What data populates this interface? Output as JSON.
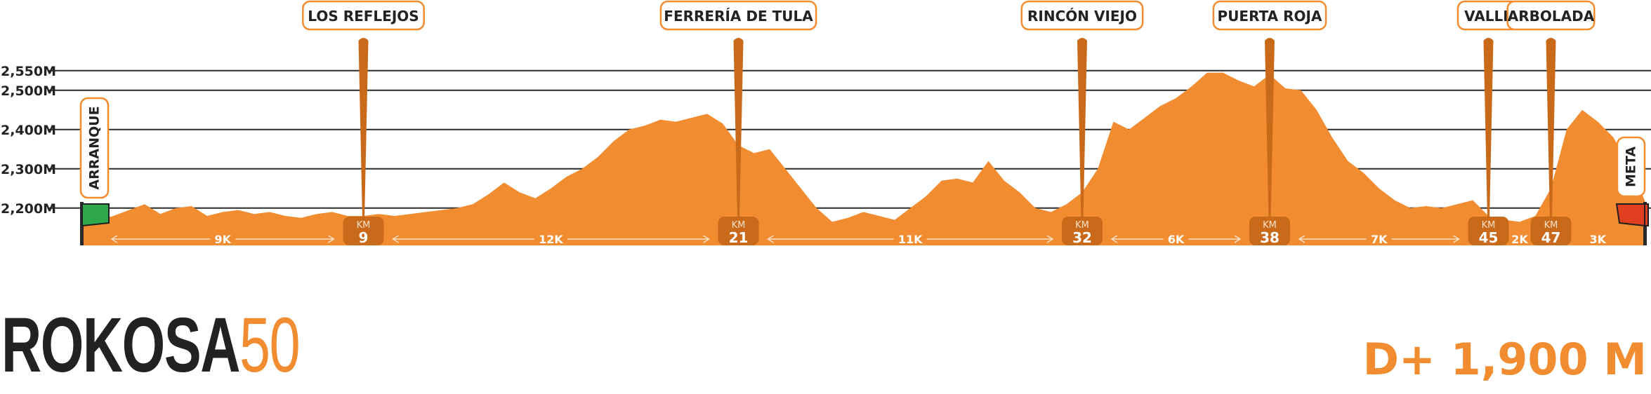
{
  "colors": {
    "accent": "#f28c30",
    "accent_dark": "#c9691a",
    "text_dark": "#222222",
    "start_flag": "#2ea84a",
    "finish_flag": "#e0401f"
  },
  "chart_data": {
    "type": "area",
    "title": "",
    "xlabel": "",
    "ylabel": "",
    "xlim": [
      0,
      50
    ],
    "ylim": [
      2105,
      2560
    ],
    "y_ticks": [
      {
        "value": 2200,
        "label": "2,200M"
      },
      {
        "value": 2300,
        "label": "2,300M"
      },
      {
        "value": 2400,
        "label": "2,400M"
      },
      {
        "value": 2500,
        "label": "2,500M"
      },
      {
        "value": 2550,
        "label": "2,550M"
      }
    ],
    "grid": true,
    "series": [
      {
        "x": [
          0,
          0.5,
          1,
          1.5,
          2,
          2.5,
          3,
          3.5,
          4,
          4.5,
          5,
          5.5,
          6,
          6.5,
          7,
          7.5,
          8,
          8.5,
          9,
          9.5,
          10,
          10.5,
          11,
          11.5,
          12,
          12.5,
          13,
          13.5,
          14,
          14.5,
          15,
          15.5,
          16,
          16.5,
          17,
          17.5,
          18,
          18.5,
          19,
          19.5,
          20,
          20.5,
          21,
          21.5,
          22,
          22.5,
          23,
          23.5,
          24,
          24.5,
          25,
          25.5,
          26,
          26.5,
          27,
          27.5,
          28,
          28.5,
          29,
          29.5,
          30,
          30.5,
          31,
          31.5,
          32,
          32.5,
          33,
          33.5,
          34,
          34.5,
          35,
          35.5,
          36,
          36.5,
          37,
          37.5,
          38,
          38.5,
          39,
          39.5,
          40,
          40.5,
          41,
          41.5,
          42,
          42.5,
          43,
          43.5,
          44,
          44.5,
          45,
          45.5,
          46,
          46.5,
          47,
          47.5,
          48,
          48.5,
          49,
          49.5,
          50
        ],
        "values": [
          2165,
          2170,
          2180,
          2195,
          2210,
          2185,
          2200,
          2205,
          2180,
          2190,
          2195,
          2185,
          2190,
          2180,
          2175,
          2185,
          2190,
          2180,
          2180,
          2185,
          2180,
          2185,
          2190,
          2195,
          2200,
          2210,
          2235,
          2265,
          2240,
          2225,
          2250,
          2280,
          2300,
          2330,
          2370,
          2400,
          2410,
          2425,
          2420,
          2430,
          2440,
          2415,
          2360,
          2340,
          2350,
          2300,
          2250,
          2200,
          2165,
          2175,
          2190,
          2180,
          2170,
          2200,
          2230,
          2270,
          2275,
          2265,
          2320,
          2270,
          2240,
          2200,
          2190,
          2210,
          2240,
          2300,
          2420,
          2400,
          2430,
          2460,
          2480,
          2510,
          2545,
          2545,
          2525,
          2510,
          2540,
          2505,
          2500,
          2450,
          2380,
          2320,
          2290,
          2250,
          2220,
          2200,
          2205,
          2200,
          2210,
          2220,
          2180,
          2170,
          2165,
          2180,
          2250,
          2400,
          2450,
          2420,
          2380,
          2310,
          2220
        ]
      }
    ],
    "checkpoints": [
      {
        "name": "LOS REFLEJOS",
        "km": 9,
        "label": "9"
      },
      {
        "name": "FERRERÍA DE TULA",
        "km": 21,
        "label": "21"
      },
      {
        "name": "RINCÓN VIEJO",
        "km": 32,
        "label": "32"
      },
      {
        "name": "PUERTA ROJA",
        "km": 38,
        "label": "38"
      },
      {
        "name": "VALLE",
        "km": 45,
        "label": "45"
      },
      {
        "name": "ARBOLADA",
        "km": 47,
        "label": "47"
      }
    ],
    "km_badge_prefix": "KM",
    "segments": [
      {
        "from_km": 0,
        "to_km": 9,
        "label": "9K"
      },
      {
        "from_km": 9,
        "to_km": 21,
        "label": "12K"
      },
      {
        "from_km": 21,
        "to_km": 32,
        "label": "11K"
      },
      {
        "from_km": 32,
        "to_km": 38,
        "label": "6K"
      },
      {
        "from_km": 38,
        "to_km": 45,
        "label": "7K"
      },
      {
        "from_km": 45,
        "to_km": 47,
        "label": "2K"
      },
      {
        "from_km": 47,
        "to_km": 50,
        "label": "3K"
      }
    ],
    "start_label": "ARRANQUE",
    "finish_label": "META"
  },
  "brand": {
    "name": "ROKOSA",
    "number": "50"
  },
  "elevation_gain": "D+ 1,900 M"
}
